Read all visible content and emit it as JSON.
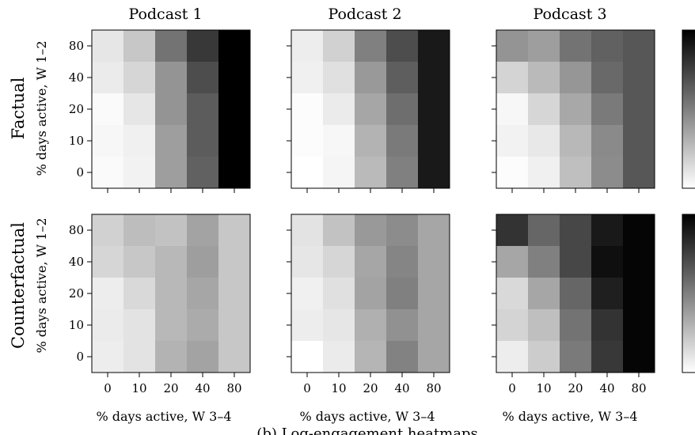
{
  "chart_data": {
    "type": "heatmap",
    "columns": [
      "Podcast 1",
      "Podcast 2",
      "Podcast 3"
    ],
    "rows": [
      "Factual",
      "Counterfactual"
    ],
    "xlabel": "% days active, W 3–4",
    "ylabel": "% days active, W 1–2",
    "x_ticks": [
      "0",
      "10",
      "20",
      "40",
      "80"
    ],
    "y_ticks": [
      "80",
      "40",
      "20",
      "10",
      "0"
    ],
    "caption": "(b) Log-engagement heatmaps",
    "colorbar": "grayscale, light = low, dark = high",
    "panels": [
      {
        "row": "Factual",
        "column": "Podcast 1",
        "values": [
          [
            0.1,
            0.22,
            0.55,
            0.78,
            1.0
          ],
          [
            0.08,
            0.16,
            0.42,
            0.7,
            1.0
          ],
          [
            0.02,
            0.1,
            0.42,
            0.64,
            1.0
          ],
          [
            0.03,
            0.06,
            0.38,
            0.64,
            1.0
          ],
          [
            0.02,
            0.05,
            0.38,
            0.62,
            1.0
          ]
        ]
      },
      {
        "row": "Factual",
        "column": "Podcast 2",
        "values": [
          [
            0.07,
            0.18,
            0.5,
            0.7,
            0.9
          ],
          [
            0.06,
            0.12,
            0.4,
            0.63,
            0.9
          ],
          [
            0.01,
            0.08,
            0.35,
            0.57,
            0.9
          ],
          [
            0.01,
            0.03,
            0.3,
            0.52,
            0.9
          ],
          [
            0.0,
            0.04,
            0.27,
            0.5,
            0.9
          ]
        ]
      },
      {
        "row": "Factual",
        "column": "Podcast 3",
        "values": [
          [
            0.42,
            0.38,
            0.55,
            0.62,
            0.66
          ],
          [
            0.17,
            0.27,
            0.41,
            0.59,
            0.66
          ],
          [
            0.03,
            0.16,
            0.34,
            0.52,
            0.66
          ],
          [
            0.05,
            0.09,
            0.28,
            0.46,
            0.66
          ],
          [
            0.01,
            0.06,
            0.25,
            0.45,
            0.66
          ]
        ]
      },
      {
        "row": "Counterfactual",
        "column": "Podcast 1",
        "values": [
          [
            0.18,
            0.26,
            0.24,
            0.36,
            0.22
          ],
          [
            0.16,
            0.22,
            0.28,
            0.38,
            0.22
          ],
          [
            0.07,
            0.15,
            0.28,
            0.35,
            0.22
          ],
          [
            0.08,
            0.11,
            0.28,
            0.33,
            0.22
          ],
          [
            0.07,
            0.11,
            0.3,
            0.36,
            0.22
          ]
        ]
      },
      {
        "row": "Counterfactual",
        "column": "Podcast 2",
        "values": [
          [
            0.11,
            0.24,
            0.4,
            0.45,
            0.35
          ],
          [
            0.1,
            0.16,
            0.35,
            0.48,
            0.35
          ],
          [
            0.06,
            0.12,
            0.36,
            0.5,
            0.35
          ],
          [
            0.07,
            0.1,
            0.31,
            0.43,
            0.35
          ],
          [
            0.0,
            0.08,
            0.29,
            0.49,
            0.35
          ]
        ]
      },
      {
        "row": "Counterfactual",
        "column": "Podcast 3",
        "values": [
          [
            0.8,
            0.6,
            0.72,
            0.9,
            0.98
          ],
          [
            0.35,
            0.5,
            0.72,
            0.94,
            0.98
          ],
          [
            0.15,
            0.35,
            0.6,
            0.88,
            0.98
          ],
          [
            0.17,
            0.25,
            0.55,
            0.8,
            0.98
          ],
          [
            0.07,
            0.2,
            0.52,
            0.78,
            0.98
          ]
        ]
      }
    ]
  }
}
